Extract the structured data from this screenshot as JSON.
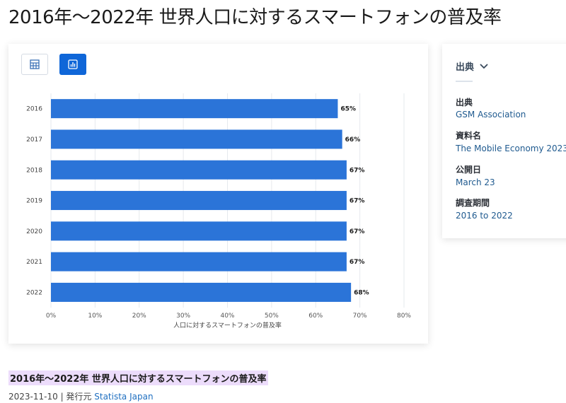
{
  "page": {
    "title": "2016年〜2022年 世界人口に対するスマートフォンの普及率"
  },
  "view_toggle": {
    "table_icon": "table-icon",
    "chart_icon": "bar-chart-icon",
    "active": "chart"
  },
  "chart_data": {
    "type": "bar",
    "orientation": "horizontal",
    "categories": [
      "2016",
      "2017",
      "2018",
      "2019",
      "2020",
      "2021",
      "2022"
    ],
    "values": [
      65,
      66,
      67,
      67,
      67,
      67,
      68
    ],
    "value_labels": [
      "65%",
      "66%",
      "67%",
      "67%",
      "67%",
      "67%",
      "68%"
    ],
    "title": "",
    "xlabel": "人口に対するスマートフォンの普及率",
    "ylabel": "",
    "xlim": [
      0,
      80
    ],
    "x_ticks": [
      "0%",
      "10%",
      "20%",
      "30%",
      "40%",
      "50%",
      "60%",
      "70%",
      "80%"
    ],
    "grid": "vertical",
    "bar_color": "#2b74d8"
  },
  "source": {
    "header": "出典",
    "items": [
      {
        "label": "出典",
        "value": "GSM Association"
      },
      {
        "label": "資料名",
        "value": "The Mobile Economy 2023"
      },
      {
        "label": "公開日",
        "value": "March 23"
      },
      {
        "label": "調査期間",
        "value": "2016 to 2022"
      }
    ]
  },
  "footer": {
    "title": "2016年〜2022年 世界人口に対するスマートフォンの普及率",
    "date": "2023-11-10",
    "separator": " | ",
    "publisher_prefix": "発行元 ",
    "publisher": "Statista Japan"
  }
}
